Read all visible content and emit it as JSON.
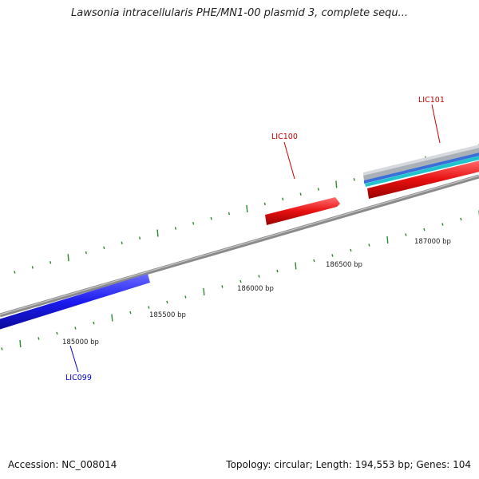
{
  "title": "Lawsonia intracellularis PHE/MN1-00 plasmid 3, complete sequ...",
  "footer": {
    "accession": "Accession: NC_008014",
    "summary": "Topology: circular; Length: 194,553 bp; Genes: 104"
  },
  "scale_labels": [
    "185000 bp",
    "185500 bp",
    "186000 bp",
    "186500 bp",
    "187000 bp"
  ],
  "genes": [
    {
      "name": "LIC099",
      "strand": "reverse",
      "color": "#1a1aee"
    },
    {
      "name": "LIC100",
      "strand": "forward",
      "color": "#e81010"
    },
    {
      "name": "LIC101",
      "strand": "forward",
      "color": "#e81010"
    }
  ],
  "colors": {
    "backbone": "#8a8a8a",
    "tick": "#2a8a2a",
    "forward_label": "#cc0000",
    "reverse_label": "#0000cc",
    "feature_cyan": "#22c4cc",
    "feature_blue": "#3a6ed8",
    "feature_grey": "#aab0b8"
  }
}
